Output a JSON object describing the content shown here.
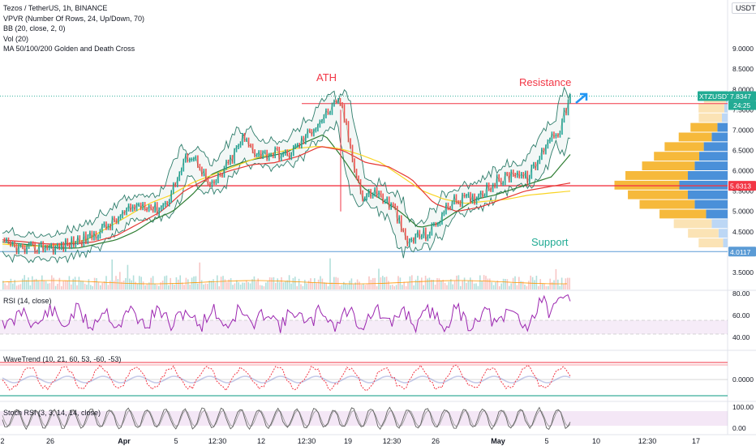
{
  "legend": {
    "title": "Tezos / TetherUS, 1h, BINANCE",
    "indicators": [
      "VPVR (Number Of Rows, 24, Up/Down, 70)",
      "BB (20, close, 2, 0)",
      "Vol (20)",
      "MA 50/100/200 Golden and Death Cross"
    ]
  },
  "currency": "USDT",
  "annotations": {
    "ath": "ATH",
    "resistance": "Resistance",
    "support": "Support"
  },
  "price_tags": {
    "symbol": "XTZUSDT",
    "last": "7.8347",
    "countdown": "24:25",
    "resistance": "5.6313",
    "support": "4.0117"
  },
  "panes": {
    "rsi": {
      "label": "RSI (14, close)",
      "ticks": [
        "80.00",
        "60.00",
        "40.00"
      ]
    },
    "wavetrend": {
      "label": "WaveTrend (10, 21, 60, 53, -60, -53)",
      "ticks": [
        "0.0000"
      ]
    },
    "stoch": {
      "label": "Stoch RSI (3, 3, 14, 14, close)",
      "ticks": [
        "100.00",
        "0.00"
      ]
    }
  },
  "colors": {
    "up": "#26a69a",
    "down": "#ef5350",
    "resistance": "#f23645",
    "support": "#5b9bd5",
    "accent": "#2962ff",
    "ma50": "#2e7d32",
    "ma100": "#f9d423",
    "ma200": "#e53935",
    "bb": "#2e7d6b",
    "rsi": "#9c27b0",
    "last": "#22ab94",
    "wave_green": "#089981"
  },
  "chart_data": {
    "type": "line",
    "title": "Tezos / TetherUS, 1h, BINANCE",
    "xlabel": "",
    "ylabel": "",
    "x_ticks": [
      "2",
      "26",
      "Apr",
      "5",
      "12:30",
      "12",
      "12:30",
      "19",
      "12:30",
      "26",
      "May",
      "5",
      "10",
      "12:30",
      "17"
    ],
    "y_ticks": [
      "3.5000",
      "4.0000",
      "4.5000",
      "5.0000",
      "5.5000",
      "6.0000",
      "6.5000",
      "7.0000",
      "7.5000",
      "8.0000",
      "8.5000",
      "9.0000"
    ],
    "ylim": [
      3.3,
      9.6
    ],
    "grid": false,
    "levels": {
      "resistance": 5.6313,
      "support": 4.0117,
      "ath_line": 7.65
    },
    "last_price": 7.8347,
    "series": [
      {
        "name": "XTZUSDT",
        "values": [
          4.2,
          4.15,
          4.05,
          4.1,
          4.15,
          4.1,
          4.2,
          4.3,
          4.35,
          4.55,
          4.7,
          4.9,
          5.1,
          5.2,
          5.05,
          5.2,
          5.8,
          6.4,
          6.2,
          5.55,
          5.9,
          6.3,
          6.8,
          6.5,
          6.4,
          6.45,
          6.35,
          6.6,
          6.9,
          7.2,
          7.5,
          7.7,
          6.4,
          5.3,
          5.5,
          5.3,
          5.0,
          4.2,
          4.4,
          4.45,
          4.8,
          5.2,
          5.3,
          5.3,
          5.5,
          5.7,
          5.8,
          6.0,
          5.8,
          6.2,
          6.8,
          7.0,
          7.8347
        ]
      }
    ],
    "moving_averages": [
      {
        "values": [
          4.25,
          4.2,
          4.15,
          4.1,
          4.1,
          4.2,
          4.3,
          4.5,
          4.8,
          5.0,
          5.4,
          5.9,
          6.1,
          6.25,
          6.35,
          6.45,
          6.7,
          6.9,
          6.3,
          5.6,
          5.3,
          5.0,
          4.6,
          4.7,
          5.0,
          5.3,
          5.4,
          5.55,
          5.7,
          5.85,
          6.4
        ]
      },
      {
        "values": [
          4.3,
          4.25,
          4.2,
          4.2,
          4.25,
          4.4,
          4.7,
          5.0,
          5.5,
          5.8,
          6.0,
          6.15,
          6.2,
          6.35,
          6.6,
          6.5,
          6.2,
          6.1,
          5.8,
          5.2,
          5.0,
          5.1,
          5.3,
          5.5,
          5.6,
          5.7
        ]
      },
      {
        "values": [
          4.2,
          4.15,
          4.15,
          4.2,
          4.3,
          4.6,
          4.9,
          5.2,
          5.4,
          5.7,
          5.9,
          6.1,
          6.3,
          6.45,
          6.55,
          6.6,
          6.55,
          6.4,
          6.2,
          5.85,
          5.5,
          5.3,
          5.2,
          5.25,
          5.3,
          5.4,
          5.45,
          5.5
        ]
      }
    ]
  }
}
